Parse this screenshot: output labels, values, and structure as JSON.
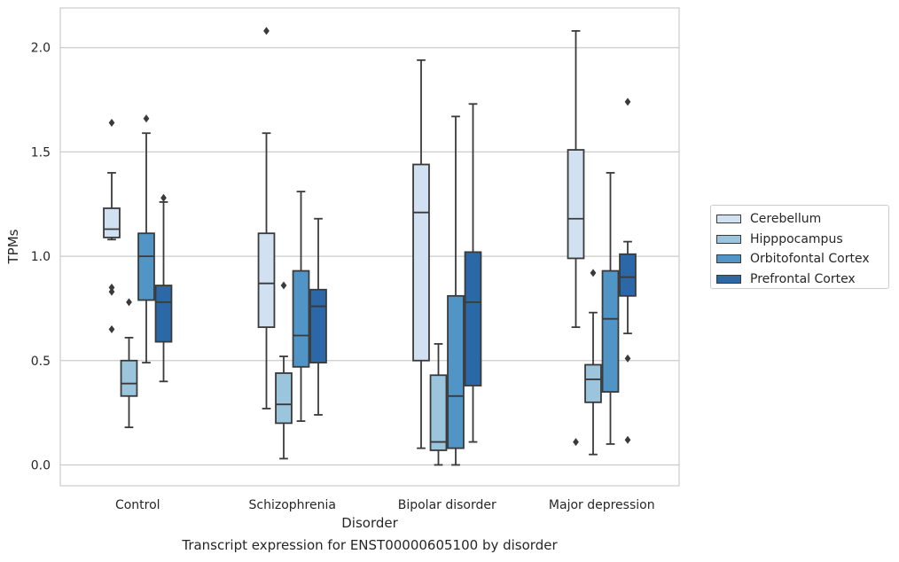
{
  "chart_data": {
    "type": "boxplot",
    "xlabel": "Disorder",
    "ylabel": "TPMs",
    "ylim": [
      -0.1,
      2.19
    ],
    "yticks": [
      0.0,
      0.5,
      1.0,
      1.5,
      2.0
    ],
    "ytick_labels": [
      "0.0",
      "0.5",
      "1.0",
      "1.5",
      "2.0"
    ],
    "grid": true,
    "legend_position": "right",
    "caption": "Transcript expression for ENST00000605100 by disorder",
    "categories": [
      "Control",
      "Schizophrenia",
      "Bipolar disorder",
      "Major depression"
    ],
    "series": [
      {
        "name": "Cerebellum",
        "color": "#d2e1f1",
        "boxes": [
          {
            "q1": 1.09,
            "median": 1.13,
            "q3": 1.23,
            "whislo": 1.08,
            "whishi": 1.4,
            "fliers": [
              1.64,
              0.85,
              0.83,
              0.65
            ]
          },
          {
            "q1": 0.66,
            "median": 0.87,
            "q3": 1.11,
            "whislo": 0.27,
            "whishi": 1.59,
            "fliers": [
              2.08
            ]
          },
          {
            "q1": 0.5,
            "median": 1.21,
            "q3": 1.44,
            "whislo": 0.08,
            "whishi": 1.94,
            "fliers": []
          },
          {
            "q1": 0.99,
            "median": 1.18,
            "q3": 1.51,
            "whislo": 0.66,
            "whishi": 2.08,
            "fliers": [
              0.11
            ]
          }
        ]
      },
      {
        "name": "Hipppocampus",
        "color": "#9bc4dd",
        "boxes": [
          {
            "q1": 0.33,
            "median": 0.39,
            "q3": 0.5,
            "whislo": 0.18,
            "whishi": 0.61,
            "fliers": [
              0.78
            ]
          },
          {
            "q1": 0.2,
            "median": 0.29,
            "q3": 0.44,
            "whislo": 0.03,
            "whishi": 0.52,
            "fliers": [
              0.86
            ]
          },
          {
            "q1": 0.07,
            "median": 0.11,
            "q3": 0.43,
            "whislo": 0.0,
            "whishi": 0.58,
            "fliers": []
          },
          {
            "q1": 0.3,
            "median": 0.41,
            "q3": 0.48,
            "whislo": 0.05,
            "whishi": 0.73,
            "fliers": [
              0.92
            ]
          }
        ]
      },
      {
        "name": "Orbitofontal Cortex",
        "color": "#5195c6",
        "boxes": [
          {
            "q1": 0.79,
            "median": 1.0,
            "q3": 1.11,
            "whislo": 0.49,
            "whishi": 1.59,
            "fliers": [
              1.66
            ]
          },
          {
            "q1": 0.47,
            "median": 0.62,
            "q3": 0.93,
            "whislo": 0.21,
            "whishi": 1.31,
            "fliers": []
          },
          {
            "q1": 0.08,
            "median": 0.33,
            "q3": 0.81,
            "whislo": 0.0,
            "whishi": 1.67,
            "fliers": []
          },
          {
            "q1": 0.35,
            "median": 0.7,
            "q3": 0.93,
            "whislo": 0.1,
            "whishi": 1.4,
            "fliers": []
          }
        ]
      },
      {
        "name": "Prefrontal Cortex",
        "color": "#2a68a8",
        "boxes": [
          {
            "q1": 0.59,
            "median": 0.78,
            "q3": 0.86,
            "whislo": 0.4,
            "whishi": 1.26,
            "fliers": [
              1.28
            ]
          },
          {
            "q1": 0.49,
            "median": 0.76,
            "q3": 0.84,
            "whislo": 0.24,
            "whishi": 1.18,
            "fliers": []
          },
          {
            "q1": 0.38,
            "median": 0.78,
            "q3": 1.02,
            "whislo": 0.11,
            "whishi": 1.73,
            "fliers": []
          },
          {
            "q1": 0.81,
            "median": 0.9,
            "q3": 1.01,
            "whislo": 0.63,
            "whishi": 1.07,
            "fliers": [
              1.74,
              0.51,
              0.12
            ]
          }
        ]
      }
    ]
  }
}
